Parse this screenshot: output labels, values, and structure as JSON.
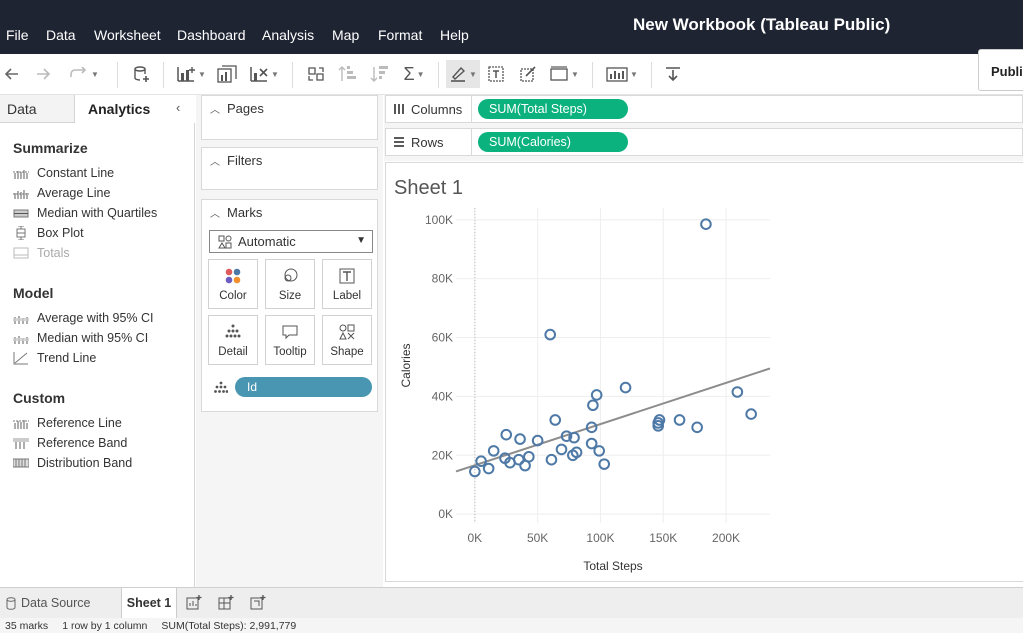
{
  "app": {
    "title": "New Workbook (Tableau Public)",
    "publish_label": "Publis"
  },
  "menu": [
    "File",
    "Data",
    "Worksheet",
    "Dashboard",
    "Analysis",
    "Map",
    "Format",
    "Help"
  ],
  "left_pane": {
    "tabs": [
      "Data",
      "Analytics"
    ],
    "active_tab": "Analytics",
    "sections": [
      {
        "title": "Summarize",
        "items": [
          {
            "label": "Constant Line",
            "icon": "constant-line-icon",
            "enabled": true
          },
          {
            "label": "Average Line",
            "icon": "average-line-icon",
            "enabled": true
          },
          {
            "label": "Median with Quartiles",
            "icon": "median-quartiles-icon",
            "enabled": true
          },
          {
            "label": "Box Plot",
            "icon": "box-plot-icon",
            "enabled": true
          },
          {
            "label": "Totals",
            "icon": "totals-icon",
            "enabled": false
          }
        ]
      },
      {
        "title": "Model",
        "items": [
          {
            "label": "Average with 95% CI",
            "icon": "average-ci-icon",
            "enabled": true
          },
          {
            "label": "Median with 95% CI",
            "icon": "median-ci-icon",
            "enabled": true
          },
          {
            "label": "Trend Line",
            "icon": "trend-line-icon",
            "enabled": true
          }
        ]
      },
      {
        "title": "Custom",
        "items": [
          {
            "label": "Reference Line",
            "icon": "reference-line-icon",
            "enabled": true
          },
          {
            "label": "Reference Band",
            "icon": "reference-band-icon",
            "enabled": true
          },
          {
            "label": "Distribution Band",
            "icon": "distribution-band-icon",
            "enabled": true
          }
        ]
      }
    ]
  },
  "cards": {
    "pages": "Pages",
    "filters": "Filters",
    "marks": "Marks",
    "mark_type": "Automatic",
    "mark_buttons": [
      "Color",
      "Size",
      "Label",
      "Detail",
      "Tooltip",
      "Shape"
    ],
    "detail_field": "Id"
  },
  "shelves": {
    "columns_label": "Columns",
    "columns_pill": "SUM(Total Steps)",
    "rows_label": "Rows",
    "rows_pill": "SUM(Calories)"
  },
  "sheet": {
    "title": "Sheet 1"
  },
  "chart_data": {
    "type": "scatter",
    "xlabel": "Total Steps",
    "ylabel": "Calories",
    "x_ticks": [
      "0K",
      "50K",
      "100K",
      "150K",
      "200K"
    ],
    "y_ticks": [
      "0K",
      "20K",
      "40K",
      "60K",
      "80K",
      "100K"
    ],
    "xlim": [
      -15000,
      235000
    ],
    "ylim": [
      -3000,
      104000
    ],
    "grid": true,
    "marker": "open-circle",
    "color": "#4e79a7",
    "trend_line": {
      "x": [
        -15000,
        235000
      ],
      "y": [
        14500,
        49500
      ],
      "color": "#8c8c8c"
    },
    "points": [
      [
        0,
        14500
      ],
      [
        5000,
        18000
      ],
      [
        11000,
        15500
      ],
      [
        15000,
        21500
      ],
      [
        24000,
        19000
      ],
      [
        25000,
        27000
      ],
      [
        28000,
        17500
      ],
      [
        35000,
        18500
      ],
      [
        36000,
        25500
      ],
      [
        40000,
        16500
      ],
      [
        43000,
        19500
      ],
      [
        50000,
        25000
      ],
      [
        61000,
        18500
      ],
      [
        60000,
        61000
      ],
      [
        64000,
        32000
      ],
      [
        69000,
        22000
      ],
      [
        73000,
        26500
      ],
      [
        78000,
        20000
      ],
      [
        79000,
        26000
      ],
      [
        81000,
        21000
      ],
      [
        93000,
        29500
      ],
      [
        94000,
        37000
      ],
      [
        93000,
        24000
      ],
      [
        97000,
        40500
      ],
      [
        99000,
        21500
      ],
      [
        103000,
        17000
      ],
      [
        120000,
        43000
      ],
      [
        146000,
        30000
      ],
      [
        147000,
        32000
      ],
      [
        146000,
        31000
      ],
      [
        163000,
        32000
      ],
      [
        177000,
        29500
      ],
      [
        184000,
        98500
      ],
      [
        209000,
        41500
      ],
      [
        220000,
        34000
      ]
    ]
  },
  "bottom": {
    "data_source": "Data Source",
    "sheet_tab": "Sheet 1"
  },
  "status": {
    "marks": "35 marks",
    "layout": "1 row by 1 column",
    "sum": "SUM(Total Steps): 2,991,779"
  }
}
